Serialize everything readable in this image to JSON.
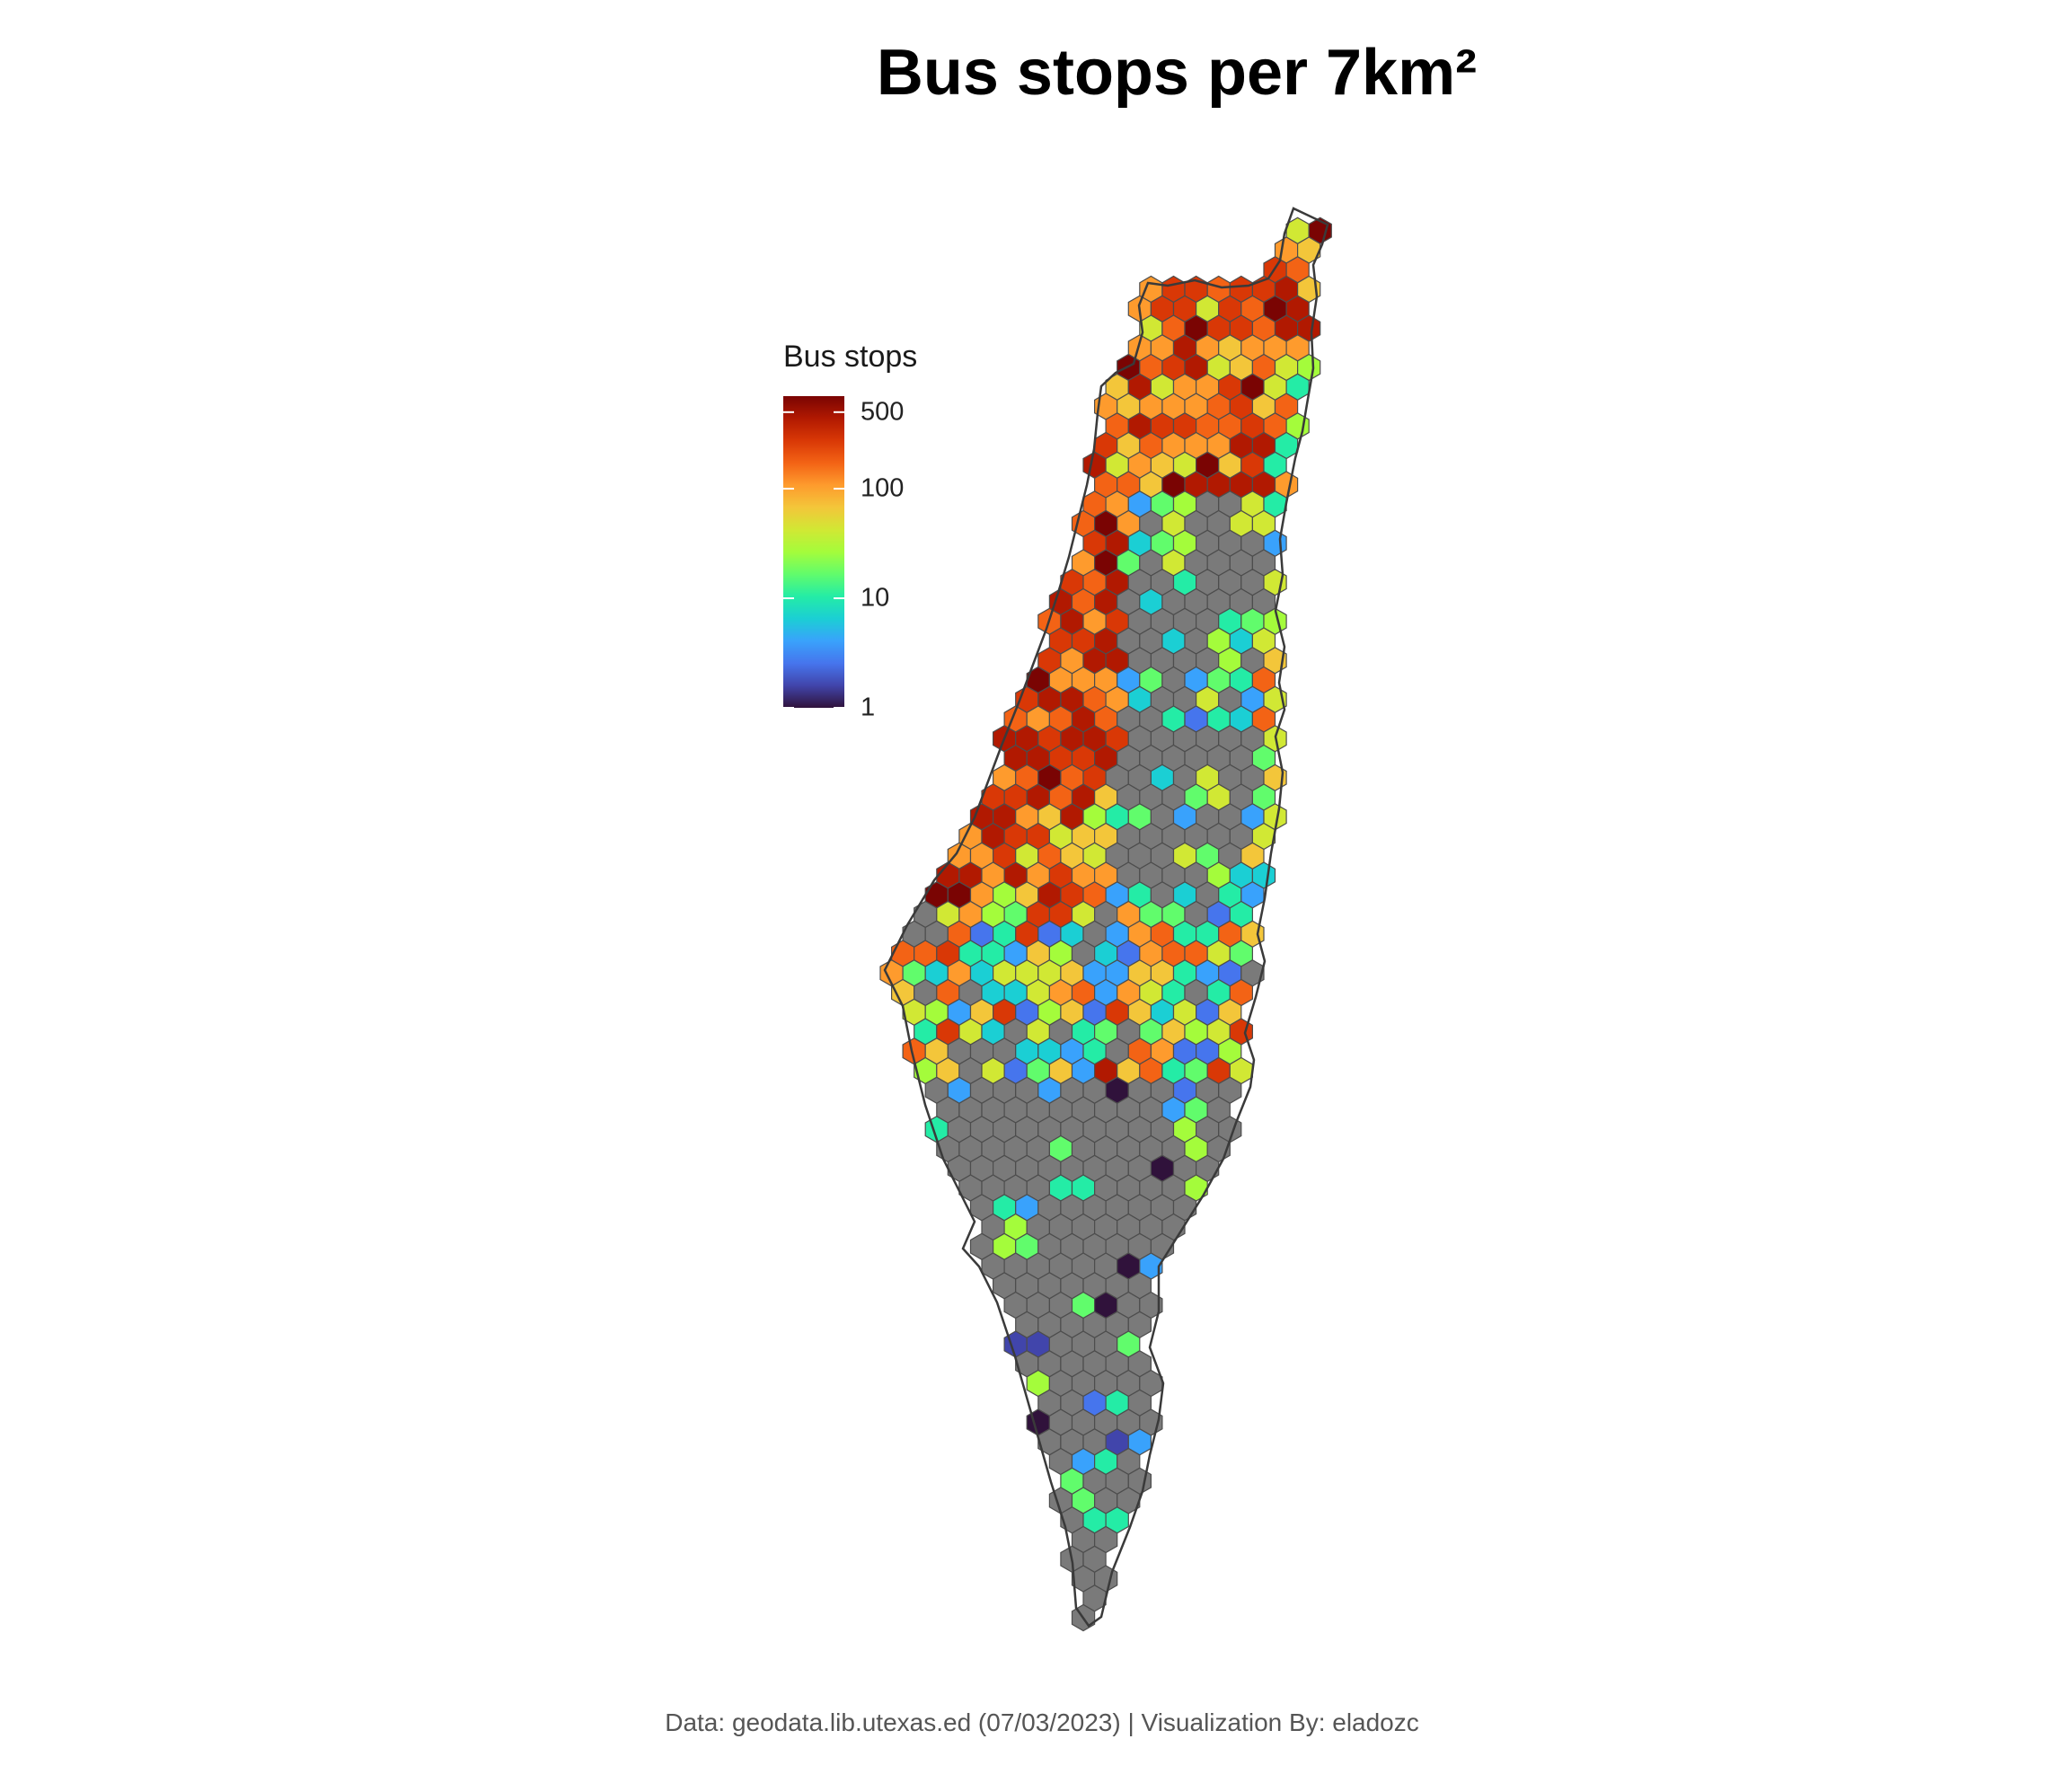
{
  "title": "Bus stops per 7km²",
  "caption": "Data: geodata.lib.utexas.ed (07/03/2023) | Visualization By: eladozc",
  "legend": {
    "title": "Bus stops",
    "scale": "log",
    "range": [
      1,
      700
    ],
    "ticks": [
      {
        "value": 500,
        "label": "500"
      },
      {
        "value": 100,
        "label": "100"
      },
      {
        "value": 10,
        "label": "10"
      },
      {
        "value": 1,
        "label": "1"
      }
    ]
  },
  "colors": {
    "no_data": "#7a7a7a",
    "hex_border": "#4d4d4d",
    "ramp": [
      "#30123b",
      "#4145ab",
      "#4675ed",
      "#39a2fc",
      "#1bcfd4",
      "#24eca6",
      "#61fc6c",
      "#a4fc3b",
      "#d1e834",
      "#f3c63a",
      "#fe9b2d",
      "#f36315",
      "#d93806",
      "#b11901",
      "#7a0403"
    ]
  },
  "icons": {
    "map": "hex-grid-map"
  }
}
